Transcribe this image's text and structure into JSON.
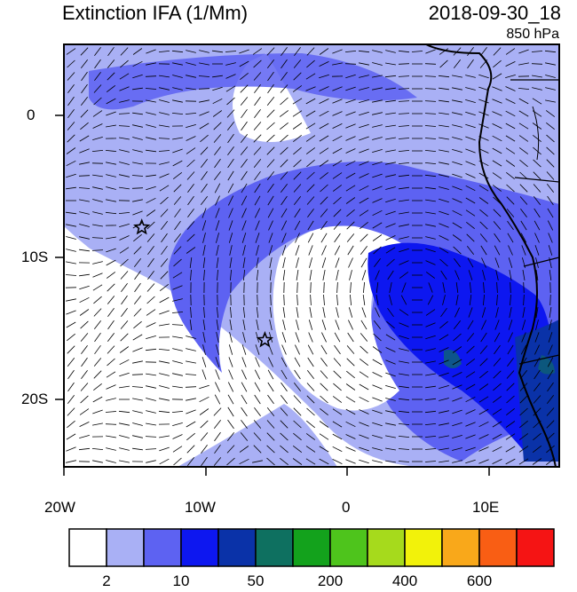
{
  "header": {
    "title": "Extinction IFA (1/Mm)",
    "datetime": "2018-09-30_18",
    "level": "850 hPa"
  },
  "map": {
    "lat_labels": [
      "0",
      "10S",
      "20S"
    ],
    "lon_labels": [
      "20W",
      "10W",
      "0",
      "10E"
    ],
    "markers": [
      {
        "name": "star-marker-1",
        "lon": -14.5,
        "lat": -8.0
      },
      {
        "name": "star-marker-2",
        "lon": -5.8,
        "lat": -16.0
      }
    ],
    "colors": {
      "land_outline": "#000000",
      "frame": "#000000"
    }
  },
  "colorbar": {
    "colors": [
      "#ffffff",
      "#a9b0f5",
      "#5d62f2",
      "#0d17f0",
      "#0a32a8",
      "#0e7060",
      "#13a21c",
      "#4ec41c",
      "#a6da1c",
      "#f2f20a",
      "#f9a81a",
      "#f95e14",
      "#f51414"
    ],
    "labels": [
      "2",
      "10",
      "50",
      "200",
      "400",
      "600"
    ]
  }
}
